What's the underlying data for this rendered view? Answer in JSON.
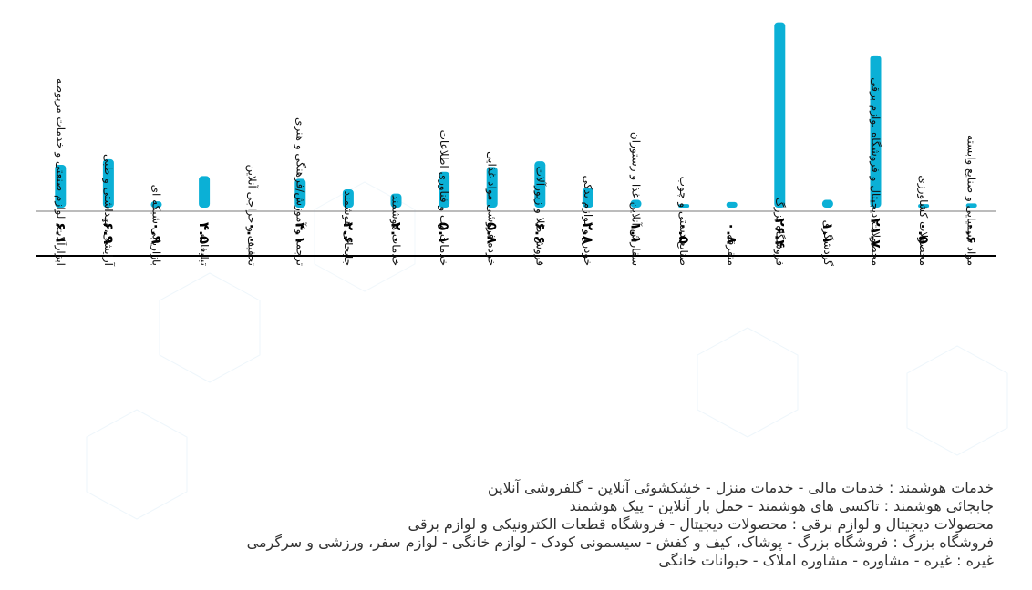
{
  "chart_data": {
    "type": "bar",
    "categories": [
      "ابزارآلات، لوازم صنعتی و خدمات مربوطه",
      "آرایشی، بهداشتی و طبی",
      "بازاریابی شبکه ای",
      "تبلیغات",
      "تخفیف و حراجی آنلاین",
      "ترجمه و آموزش/فرهنگی و هنری",
      "جابجائی هوشمند",
      "خدمات هوشمند",
      "خدمات وب و فناوری اطلاعات",
      "خرده فروشی مواد غذایی",
      "فروش طلا و زیورآلات",
      "خودرو و لوازم یدکی",
      "سفارش آنلاین غذا و رستوران",
      "صنایع دستی و چوب",
      "متفرقه",
      "فروشگاه بزرگ",
      "گردشگری",
      "محصولات دیجیتال و فروشگاه لوازم برقی",
      "محصولات کشاورزی",
      "مواد شیمیایی و صنایع وابسته"
    ],
    "values": [
      6.1,
      6.9,
      0.9,
      4.5,
      0.0,
      4.1,
      2.6,
      2.0,
      5.1,
      5.8,
      6.6,
      2.8,
      1.1,
      0.5,
      0.8,
      26.4,
      1.1,
      21.7,
      0.5,
      0.6
    ],
    "value_labels": [
      "۶.۱",
      "۶.۹",
      "۰.۹",
      "۴.۵",
      "۰.۰",
      "۴.۱",
      "۲.۶",
      "۲.۰",
      "۵.۱",
      "۵.۸",
      "۶.۶",
      "۲.۸",
      "۱.۱",
      "۰.۵",
      "۰.۸",
      "۲۶.۴",
      "۱.۱",
      "۲۱.۷",
      "۰.۵",
      "۰.۶"
    ],
    "ylim": [
      0,
      27
    ],
    "grid": false,
    "bar_color": "#0bb0d6"
  },
  "notes": [
    "خدمات هوشمند : خدمات مالی - خدمات منزل - خشکشوئی آنلاین - گلفروشی آنلاین",
    "جابجائی هوشمند : تاکسی های هوشمند - حمل بار آنلاین - پیک هوشمند",
    "محصولات دیجیتال و لوازم برقی : محصولات دیجیتال - فروشگاه قطعات الکترونیکی و لوازم برقی",
    "فروشگاه بزرگ : فروشگاه بزرگ - پوشاک، کیف و کفش - سیسمونی کودک - لوازم خانگی - لوازم سفر، ورزشی و سرگرمی",
    "غیره : غیره - مشاوره - مشاوره املاک - حیوانات خانگی"
  ]
}
